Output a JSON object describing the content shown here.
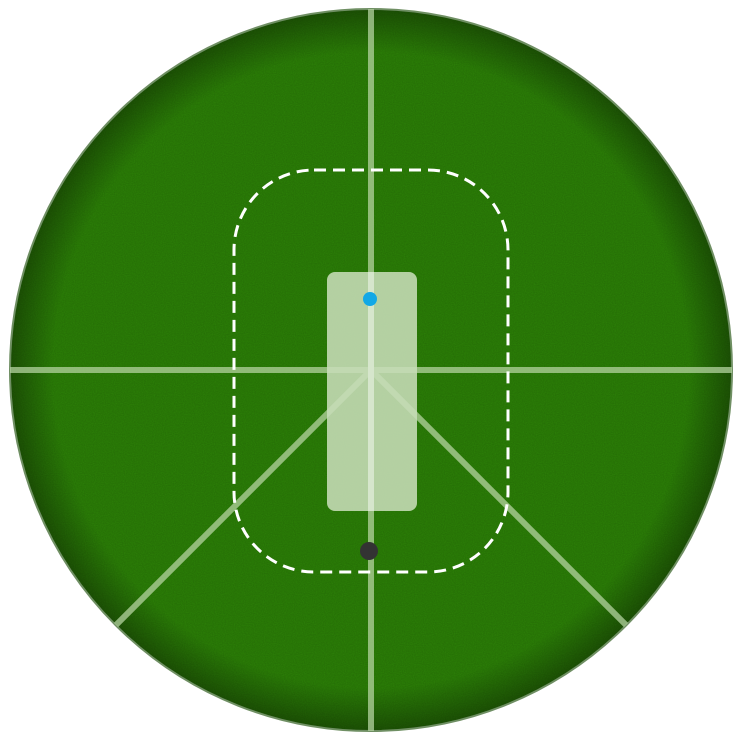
{
  "field": {
    "grass_color": "#2c8207",
    "grass_dark": "#1f5d05",
    "line_color": "#b5d3a0",
    "pitch_color": "#c7ddb8",
    "inner_circle_color": "#ffffff",
    "edge_color": "#6f8f63"
  },
  "markers": [
    {
      "name": "bowler-marker",
      "color": "#12a8e6"
    },
    {
      "name": "batter-marker",
      "color": "#333333"
    }
  ]
}
